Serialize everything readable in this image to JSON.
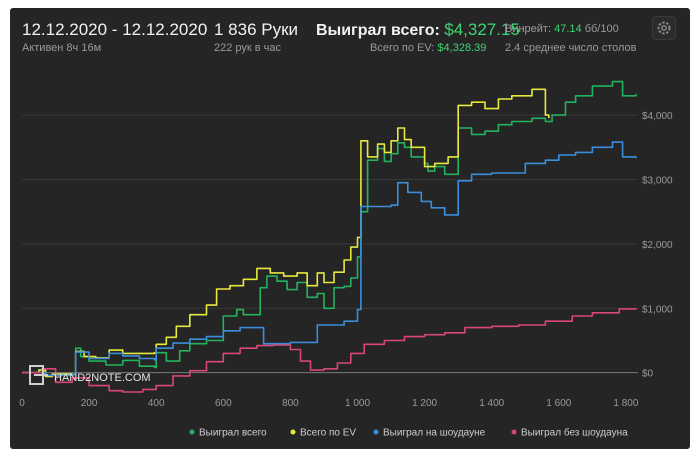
{
  "header": {
    "date_range": "12.12.2020 - 12.12.2020",
    "active_time": "Активен 8ч 16м",
    "hands": "1 836 Руки",
    "hands_per_hour": "222 рук в час",
    "won_total_label": "Выиграл всего:",
    "won_total_value": "$4,327.15",
    "ev_total_label": "Всего по EV:",
    "ev_total_value": "$4,328.39",
    "winrate_label": "Винрейт:",
    "winrate_value": "47.14",
    "winrate_unit": "бб/100",
    "avg_tables": "2.4 среднее число столов",
    "settings_icon": "gear-icon"
  },
  "watermark": "HAND2NOTE.COM",
  "colors": {
    "background": "#252525",
    "won_total": "#23b35f",
    "ev_total": "#e6ea3c",
    "showdown": "#3a8edb",
    "non_showdown": "#d9467a",
    "accent_value": "#3dd672"
  },
  "chart_data": {
    "type": "line",
    "xlim": [
      0,
      1836
    ],
    "ylim": [
      -300,
      4700
    ],
    "x_ticks": [
      0,
      200,
      400,
      600,
      800,
      1000,
      1200,
      1400,
      1600,
      1800
    ],
    "x_tick_labels": [
      "0",
      "200",
      "400",
      "600",
      "800",
      "1 000",
      "1 200",
      "1 400",
      "1 600",
      "1 800"
    ],
    "y_ticks": [
      0,
      1000,
      2000,
      3000,
      4000
    ],
    "y_tick_labels": [
      "$0",
      "$1,000",
      "$2,000",
      "$3,000",
      "$4,000"
    ],
    "grid": "horizontal",
    "legend_position": "bottom",
    "series": [
      {
        "name": "Выиграл всего",
        "color": "#23b35f",
        "points": [
          [
            0,
            0
          ],
          [
            50,
            40
          ],
          [
            70,
            -60
          ],
          [
            90,
            -20
          ],
          [
            150,
            -30
          ],
          [
            160,
            380
          ],
          [
            175,
            250
          ],
          [
            200,
            180
          ],
          [
            250,
            120
          ],
          [
            300,
            190
          ],
          [
            350,
            100
          ],
          [
            395,
            80
          ],
          [
            400,
            310
          ],
          [
            430,
            180
          ],
          [
            470,
            340
          ],
          [
            500,
            450
          ],
          [
            550,
            500
          ],
          [
            600,
            880
          ],
          [
            640,
            980
          ],
          [
            660,
            900
          ],
          [
            710,
            1320
          ],
          [
            730,
            1500
          ],
          [
            760,
            1420
          ],
          [
            790,
            1290
          ],
          [
            820,
            1400
          ],
          [
            850,
            1170
          ],
          [
            880,
            1230
          ],
          [
            900,
            1000
          ],
          [
            930,
            1320
          ],
          [
            960,
            1340
          ],
          [
            980,
            1470
          ],
          [
            1000,
            1800
          ],
          [
            1010,
            2500
          ],
          [
            1030,
            3300
          ],
          [
            1060,
            3480
          ],
          [
            1080,
            3280
          ],
          [
            1100,
            3400
          ],
          [
            1120,
            3570
          ],
          [
            1140,
            3500
          ],
          [
            1160,
            3350
          ],
          [
            1200,
            3250
          ],
          [
            1210,
            3130
          ],
          [
            1230,
            3200
          ],
          [
            1260,
            3080
          ],
          [
            1300,
            3800
          ],
          [
            1340,
            3700
          ],
          [
            1380,
            3750
          ],
          [
            1420,
            3850
          ],
          [
            1460,
            3900
          ],
          [
            1520,
            3950
          ],
          [
            1560,
            3900
          ],
          [
            1580,
            4000
          ],
          [
            1620,
            4200
          ],
          [
            1650,
            4300
          ],
          [
            1700,
            4450
          ],
          [
            1760,
            4520
          ],
          [
            1790,
            4300
          ],
          [
            1830,
            4330
          ]
        ]
      },
      {
        "name": "Всего по EV",
        "color": "#e6ea3c",
        "points": [
          [
            0,
            0
          ],
          [
            50,
            40
          ],
          [
            70,
            -60
          ],
          [
            90,
            -20
          ],
          [
            150,
            -30
          ],
          [
            160,
            330
          ],
          [
            185,
            250
          ],
          [
            220,
            230
          ],
          [
            260,
            350
          ],
          [
            300,
            300
          ],
          [
            350,
            300
          ],
          [
            395,
            310
          ],
          [
            400,
            440
          ],
          [
            430,
            550
          ],
          [
            460,
            720
          ],
          [
            500,
            900
          ],
          [
            550,
            1050
          ],
          [
            580,
            1300
          ],
          [
            620,
            1350
          ],
          [
            660,
            1450
          ],
          [
            700,
            1620
          ],
          [
            740,
            1550
          ],
          [
            780,
            1500
          ],
          [
            820,
            1550
          ],
          [
            850,
            1350
          ],
          [
            880,
            1550
          ],
          [
            900,
            1400
          ],
          [
            930,
            1560
          ],
          [
            960,
            1750
          ],
          [
            980,
            1950
          ],
          [
            1000,
            2100
          ],
          [
            1010,
            3600
          ],
          [
            1030,
            3350
          ],
          [
            1060,
            3550
          ],
          [
            1080,
            3420
          ],
          [
            1100,
            3600
          ],
          [
            1120,
            3800
          ],
          [
            1140,
            3620
          ],
          [
            1160,
            3500
          ],
          [
            1200,
            3200
          ],
          [
            1230,
            3250
          ],
          [
            1270,
            3350
          ],
          [
            1300,
            4150
          ],
          [
            1340,
            4200
          ],
          [
            1380,
            4100
          ],
          [
            1420,
            4250
          ],
          [
            1460,
            4300
          ],
          [
            1520,
            4400
          ],
          [
            1560,
            4000
          ],
          [
            1570,
            3950
          ]
        ]
      },
      {
        "name": "Выиграл на шоудауне",
        "color": "#3a8edb",
        "points": [
          [
            0,
            0
          ],
          [
            70,
            -40
          ],
          [
            150,
            -30
          ],
          [
            160,
            320
          ],
          [
            200,
            220
          ],
          [
            260,
            300
          ],
          [
            300,
            260
          ],
          [
            350,
            220
          ],
          [
            395,
            200
          ],
          [
            400,
            380
          ],
          [
            450,
            460
          ],
          [
            500,
            520
          ],
          [
            550,
            560
          ],
          [
            600,
            650
          ],
          [
            650,
            700
          ],
          [
            700,
            700
          ],
          [
            720,
            450
          ],
          [
            760,
            450
          ],
          [
            800,
            470
          ],
          [
            840,
            470
          ],
          [
            880,
            740
          ],
          [
            920,
            740
          ],
          [
            960,
            800
          ],
          [
            1000,
            980
          ],
          [
            1010,
            2580
          ],
          [
            1050,
            2580
          ],
          [
            1100,
            2600
          ],
          [
            1120,
            2950
          ],
          [
            1150,
            2800
          ],
          [
            1190,
            2660
          ],
          [
            1220,
            2560
          ],
          [
            1260,
            2450
          ],
          [
            1300,
            2980
          ],
          [
            1340,
            3080
          ],
          [
            1400,
            3100
          ],
          [
            1500,
            3250
          ],
          [
            1560,
            3300
          ],
          [
            1600,
            3380
          ],
          [
            1650,
            3420
          ],
          [
            1700,
            3500
          ],
          [
            1760,
            3580
          ],
          [
            1790,
            3350
          ],
          [
            1830,
            3330
          ]
        ]
      },
      {
        "name": "Выиграл без шоудауна",
        "color": "#d9467a",
        "points": [
          [
            0,
            0
          ],
          [
            60,
            60
          ],
          [
            100,
            -150
          ],
          [
            150,
            -80
          ],
          [
            200,
            -200
          ],
          [
            260,
            -280
          ],
          [
            300,
            -300
          ],
          [
            360,
            -260
          ],
          [
            400,
            -200
          ],
          [
            450,
            -50
          ],
          [
            500,
            30
          ],
          [
            550,
            170
          ],
          [
            600,
            300
          ],
          [
            650,
            380
          ],
          [
            700,
            420
          ],
          [
            750,
            430
          ],
          [
            800,
            360
          ],
          [
            830,
            180
          ],
          [
            860,
            40
          ],
          [
            900,
            60
          ],
          [
            940,
            150
          ],
          [
            980,
            300
          ],
          [
            1020,
            440
          ],
          [
            1080,
            500
          ],
          [
            1140,
            560
          ],
          [
            1200,
            590
          ],
          [
            1260,
            620
          ],
          [
            1320,
            700
          ],
          [
            1400,
            720
          ],
          [
            1480,
            740
          ],
          [
            1560,
            800
          ],
          [
            1640,
            880
          ],
          [
            1700,
            930
          ],
          [
            1780,
            990
          ],
          [
            1830,
            1000
          ]
        ]
      }
    ]
  }
}
